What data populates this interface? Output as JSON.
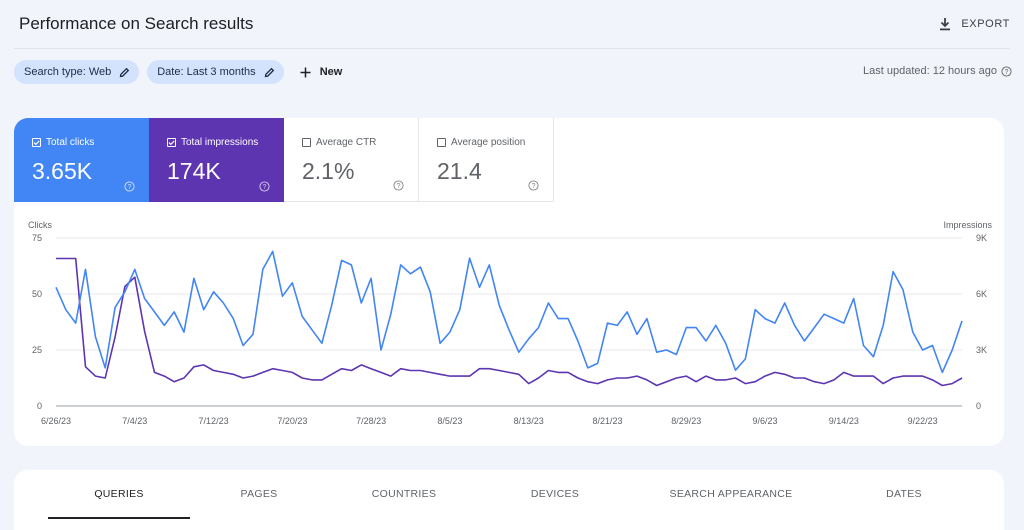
{
  "header": {
    "title": "Performance on Search results",
    "export_label": "EXPORT"
  },
  "filters": {
    "chips": [
      {
        "label": "Search type: Web"
      },
      {
        "label": "Date: Last 3 months"
      }
    ],
    "new_label": "New",
    "last_updated": "Last updated: 12 hours ago"
  },
  "metrics": [
    {
      "label": "Total clicks",
      "value": "3.65K",
      "checked": true
    },
    {
      "label": "Total impressions",
      "value": "174K",
      "checked": true
    },
    {
      "label": "Average CTR",
      "value": "2.1%",
      "checked": false
    },
    {
      "label": "Average position",
      "value": "21.4",
      "checked": false
    }
  ],
  "colors": {
    "clicks": "#4285f4",
    "impressions": "#5e35b1",
    "chip": "#d3e3fd",
    "background": "#f1f4fb"
  },
  "chart_data": {
    "type": "line",
    "xlabel": "",
    "ylabel_left": "Clicks",
    "ylabel_right": "Impressions",
    "ylim_left": [
      0,
      75
    ],
    "ylim_right": [
      0,
      9000
    ],
    "yticks_left": [
      "0",
      "25",
      "50",
      "75"
    ],
    "yticks_right": [
      "0",
      "3K",
      "6K",
      "9K"
    ],
    "x_tick_labels": [
      "6/26/23",
      "7/4/23",
      "7/12/23",
      "7/20/23",
      "7/28/23",
      "8/5/23",
      "8/13/23",
      "8/21/23",
      "8/29/23",
      "9/6/23",
      "9/14/23",
      "9/22/23"
    ],
    "grid": true,
    "series": [
      {
        "name": "Clicks",
        "axis": "left",
        "values": [
          53,
          43,
          37,
          61,
          31,
          17,
          44,
          51,
          61,
          48,
          42,
          36,
          42,
          33,
          57,
          43,
          51,
          46,
          39,
          27,
          32,
          61,
          69,
          49,
          55,
          40,
          34,
          28,
          45,
          65,
          63,
          46,
          57,
          25,
          41,
          63,
          59,
          62,
          51,
          28,
          33,
          43,
          66,
          53,
          63,
          45,
          34,
          24,
          30,
          35,
          46,
          39,
          39,
          29,
          17,
          19,
          37,
          36,
          42,
          32,
          39,
          24,
          25,
          23,
          35,
          35,
          29,
          36,
          28,
          16,
          21,
          43,
          39,
          37,
          46,
          36,
          29,
          35,
          41,
          39,
          37,
          48,
          27,
          22,
          36,
          60,
          52,
          33,
          25,
          27,
          15,
          25,
          38
        ]
      },
      {
        "name": "Impressions",
        "axis": "right",
        "values": [
          7900,
          7900,
          7900,
          2100,
          1600,
          1500,
          3700,
          6400,
          6900,
          4000,
          1800,
          1600,
          1300,
          1500,
          2100,
          2200,
          1900,
          1800,
          1700,
          1500,
          1600,
          1800,
          2000,
          1900,
          1800,
          1500,
          1400,
          1400,
          1700,
          2000,
          1900,
          2200,
          2000,
          1800,
          1600,
          2000,
          1900,
          1900,
          1800,
          1700,
          1600,
          1600,
          1600,
          2000,
          2000,
          1900,
          1800,
          1700,
          1200,
          1500,
          1900,
          1800,
          1800,
          1500,
          1300,
          1200,
          1400,
          1500,
          1500,
          1600,
          1400,
          1100,
          1300,
          1500,
          1600,
          1300,
          1600,
          1400,
          1400,
          1500,
          1200,
          1300,
          1600,
          1800,
          1700,
          1500,
          1500,
          1300,
          1200,
          1400,
          1800,
          1600,
          1600,
          1600,
          1200,
          1500,
          1600,
          1600,
          1600,
          1400,
          1100,
          1200,
          1500
        ]
      }
    ]
  },
  "tabs": [
    {
      "label": "QUERIES",
      "active": true
    },
    {
      "label": "PAGES",
      "active": false
    },
    {
      "label": "COUNTRIES",
      "active": false
    },
    {
      "label": "DEVICES",
      "active": false
    },
    {
      "label": "SEARCH APPEARANCE",
      "active": false
    },
    {
      "label": "DATES",
      "active": false
    }
  ]
}
